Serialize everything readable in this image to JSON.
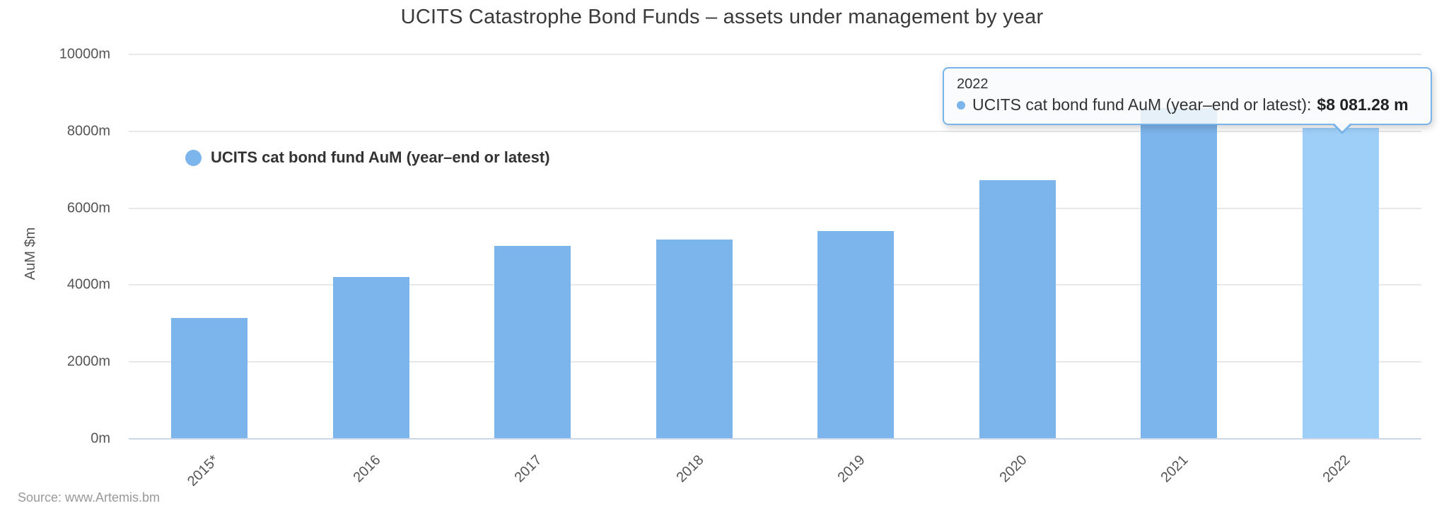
{
  "chart_data": {
    "type": "bar",
    "title": "UCITS Catastrophe Bond Funds – assets under management by year",
    "xlabel": "",
    "ylabel": "AuM $m",
    "categories": [
      "2015*",
      "2016",
      "2017",
      "2018",
      "2019",
      "2020",
      "2021",
      "2022"
    ],
    "series": [
      {
        "name": "UCITS cat bond fund AuM (year–end or latest)",
        "values": [
          3140,
          4210,
          5010,
          5190,
          5410,
          6730,
          8600,
          8081.28
        ]
      }
    ],
    "ylim": [
      0,
      10000
    ],
    "yticks": [
      {
        "value": 0,
        "label": "0m"
      },
      {
        "value": 2000,
        "label": "2000m"
      },
      {
        "value": 4000,
        "label": "4000m"
      },
      {
        "value": 6000,
        "label": "6000m"
      },
      {
        "value": 8000,
        "label": "8000m"
      },
      {
        "value": 10000,
        "label": "10000m"
      }
    ],
    "grid": true,
    "legend_position": "inside-top-left",
    "highlight_index": 7,
    "colors": {
      "bar": "#7cb5ec",
      "bar_highlight": "#9ecff8",
      "gridline": "#e8e8e8",
      "axis_line": "#ccd6eb",
      "tooltip_border": "#78b3ea"
    }
  },
  "legend": {
    "label": "UCITS cat bond fund AuM (year–end or latest)"
  },
  "tooltip": {
    "header": "2022",
    "label": "UCITS cat bond fund AuM (year–end or latest):",
    "value": "$8 081.28 m"
  },
  "yaxis": {
    "title": "AuM $m"
  },
  "source": "Source: www.Artemis.bm"
}
